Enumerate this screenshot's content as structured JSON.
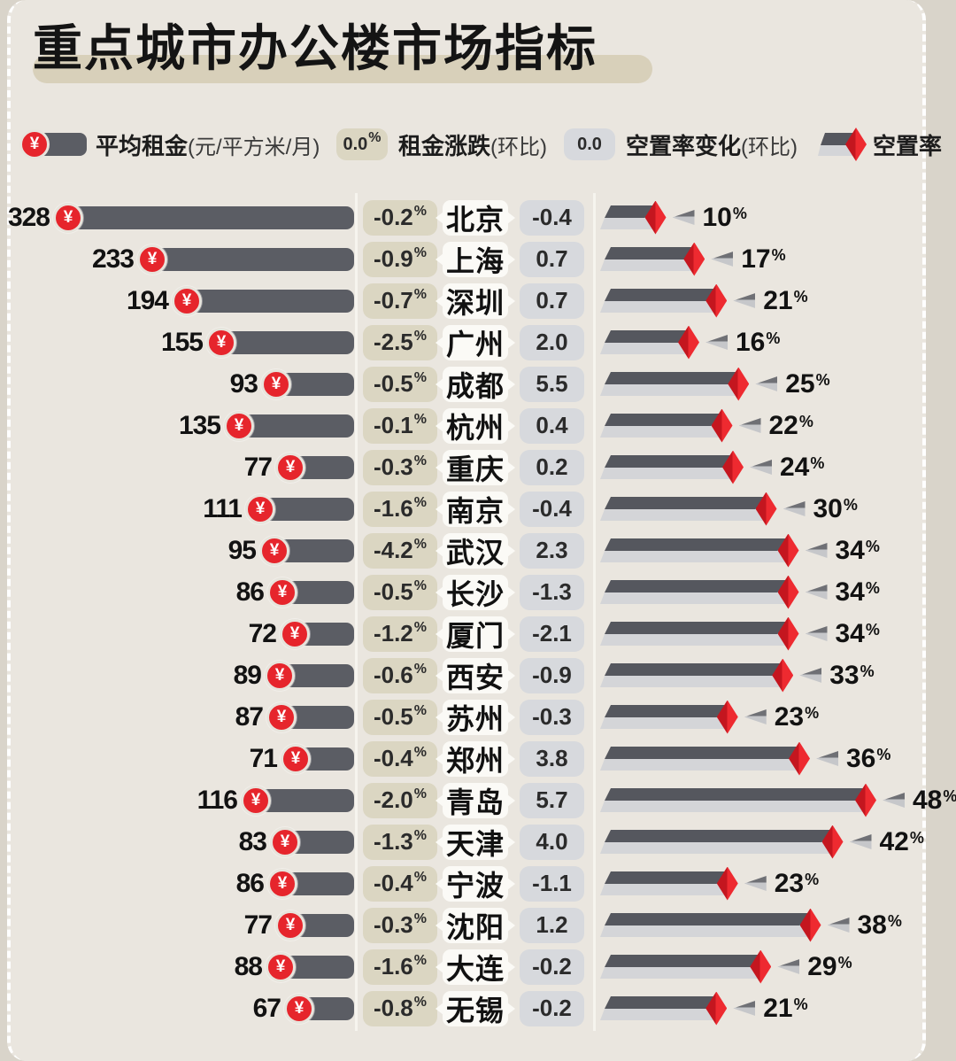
{
  "title": "重点城市办公楼市场指标",
  "legend": {
    "rent": {
      "label": "平均租金",
      "unit": "(元/平方米/月)",
      "icon": "yuan-coin-icon",
      "symbol": "¥"
    },
    "rent_change": {
      "badge": "0.0",
      "badge_suffix": "%",
      "label": "租金涨跌",
      "unit": "(环比)"
    },
    "vacancy_change": {
      "badge": "0.0",
      "label": "空置率变化",
      "unit": "(环比)"
    },
    "vacancy": {
      "label": "空置率",
      "icon": "vacancy-bar-diamond-icon"
    }
  },
  "colors": {
    "background": "#eae6df",
    "page_edge": "#d9d4ca",
    "bar_dark": "#5b5d64",
    "vacancy_bar_top": "#55575e",
    "vacancy_bar_bottom": "#d4d5d8",
    "accent_red": "#e6252c",
    "rent_badge_bg": "#dbd6c2",
    "vacancy_badge_bg": "#d7d9dd",
    "city_bubble_bg": "#fbfaf6",
    "title_highlight": "#d8d0ba",
    "text": "#121212"
  },
  "chart_data": {
    "type": "bar",
    "orientation": "horizontal",
    "categories": [
      "北京",
      "上海",
      "深圳",
      "广州",
      "成都",
      "杭州",
      "重庆",
      "南京",
      "武汉",
      "长沙",
      "厦门",
      "西安",
      "苏州",
      "郑州",
      "青岛",
      "天津",
      "宁波",
      "沈阳",
      "大连",
      "无锡"
    ],
    "series": [
      {
        "name": "平均租金(元/平方米/月)",
        "values": [
          328,
          233,
          194,
          155,
          93,
          135,
          77,
          111,
          95,
          86,
          72,
          89,
          87,
          71,
          116,
          83,
          86,
          77,
          88,
          67
        ]
      },
      {
        "name": "租金涨跌(环比%)",
        "values": [
          -0.2,
          -0.9,
          -0.7,
          -2.5,
          -0.5,
          -0.1,
          -0.3,
          -1.6,
          -4.2,
          -0.5,
          -1.2,
          -0.6,
          -0.5,
          -0.4,
          -2.0,
          -1.3,
          -0.4,
          -0.3,
          -1.6,
          -0.8
        ]
      },
      {
        "name": "空置率变化(环比)",
        "values": [
          -0.4,
          0.7,
          0.7,
          2.0,
          5.5,
          0.4,
          0.2,
          -0.4,
          2.3,
          -1.3,
          -2.1,
          -0.9,
          -0.3,
          3.8,
          5.7,
          4.0,
          -1.1,
          1.2,
          -0.2,
          -0.2
        ]
      },
      {
        "name": "空置率(%)",
        "values": [
          10,
          17,
          21,
          16,
          25,
          22,
          24,
          30,
          34,
          34,
          34,
          33,
          23,
          36,
          48,
          42,
          23,
          38,
          29,
          21
        ]
      }
    ],
    "title": "重点城市办公楼市场指标",
    "legend_position": "top",
    "grid": false
  },
  "rows": [
    {
      "city": "北京",
      "rent": 328,
      "rent_change": "-0.2",
      "vacancy_change": "-0.4",
      "vacancy": 10
    },
    {
      "city": "上海",
      "rent": 233,
      "rent_change": "-0.9",
      "vacancy_change": "0.7",
      "vacancy": 17
    },
    {
      "city": "深圳",
      "rent": 194,
      "rent_change": "-0.7",
      "vacancy_change": "0.7",
      "vacancy": 21
    },
    {
      "city": "广州",
      "rent": 155,
      "rent_change": "-2.5",
      "vacancy_change": "2.0",
      "vacancy": 16
    },
    {
      "city": "成都",
      "rent": 93,
      "rent_change": "-0.5",
      "vacancy_change": "5.5",
      "vacancy": 25
    },
    {
      "city": "杭州",
      "rent": 135,
      "rent_change": "-0.1",
      "vacancy_change": "0.4",
      "vacancy": 22
    },
    {
      "city": "重庆",
      "rent": 77,
      "rent_change": "-0.3",
      "vacancy_change": "0.2",
      "vacancy": 24
    },
    {
      "city": "南京",
      "rent": 111,
      "rent_change": "-1.6",
      "vacancy_change": "-0.4",
      "vacancy": 30
    },
    {
      "city": "武汉",
      "rent": 95,
      "rent_change": "-4.2",
      "vacancy_change": "2.3",
      "vacancy": 34
    },
    {
      "city": "长沙",
      "rent": 86,
      "rent_change": "-0.5",
      "vacancy_change": "-1.3",
      "vacancy": 34
    },
    {
      "city": "厦门",
      "rent": 72,
      "rent_change": "-1.2",
      "vacancy_change": "-2.1",
      "vacancy": 34
    },
    {
      "city": "西安",
      "rent": 89,
      "rent_change": "-0.6",
      "vacancy_change": "-0.9",
      "vacancy": 33
    },
    {
      "city": "苏州",
      "rent": 87,
      "rent_change": "-0.5",
      "vacancy_change": "-0.3",
      "vacancy": 23
    },
    {
      "city": "郑州",
      "rent": 71,
      "rent_change": "-0.4",
      "vacancy_change": "3.8",
      "vacancy": 36
    },
    {
      "city": "青岛",
      "rent": 116,
      "rent_change": "-2.0",
      "vacancy_change": "5.7",
      "vacancy": 48
    },
    {
      "city": "天津",
      "rent": 83,
      "rent_change": "-1.3",
      "vacancy_change": "4.0",
      "vacancy": 42
    },
    {
      "city": "宁波",
      "rent": 86,
      "rent_change": "-0.4",
      "vacancy_change": "-1.1",
      "vacancy": 23
    },
    {
      "city": "沈阳",
      "rent": 77,
      "rent_change": "-0.3",
      "vacancy_change": "1.2",
      "vacancy": 38
    },
    {
      "city": "大连",
      "rent": 88,
      "rent_change": "-1.6",
      "vacancy_change": "-0.2",
      "vacancy": 29
    },
    {
      "city": "无锡",
      "rent": 67,
      "rent_change": "-0.8",
      "vacancy_change": "-0.2",
      "vacancy": 21
    }
  ]
}
